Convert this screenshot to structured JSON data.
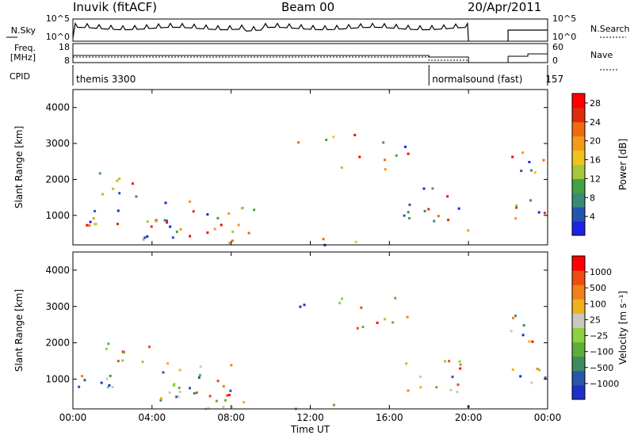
{
  "header": {
    "station": "Inuvik (fitACF)",
    "beam": "Beam 00",
    "date": "20/Apr/2011"
  },
  "noise_panel": {
    "left_label": "N.Sky",
    "right_label": "N.Search",
    "left_ticks": [
      "10^5",
      "10^0"
    ],
    "right_ticks": [
      "10^5",
      "10^0"
    ]
  },
  "freq_panel": {
    "left_label_1": "Freq.",
    "left_label_2": "[MHz]",
    "left_ticks": [
      "18",
      "8"
    ],
    "right_label": "Nave",
    "right_ticks": [
      "60",
      "0"
    ]
  },
  "cpid_panel": {
    "label": "CPID",
    "modes": [
      {
        "name": "themis 3300",
        "start_hour": 0.0
      },
      {
        "name": "normalsound (fast)",
        "cpid": "157",
        "start_hour": 18.0
      }
    ]
  },
  "chart_data": [
    {
      "type": "heatmap",
      "title": "",
      "xlabel": "",
      "ylabel": "Slant Range [km]",
      "x_ticks": [
        "00:00",
        "04:00",
        "08:00",
        "12:00",
        "16:00",
        "20:00",
        "00:00"
      ],
      "x_tick_hours": [
        0,
        4,
        8,
        12,
        16,
        20,
        24
      ],
      "xlim_hours": [
        0,
        24
      ],
      "y_ticks": [
        1000,
        2000,
        3000,
        4000
      ],
      "ylim": [
        180,
        4500
      ],
      "colorbar": {
        "label": "Power [dB]",
        "ticks": [
          4,
          8,
          12,
          16,
          20,
          24,
          28
        ],
        "range": [
          0,
          30
        ],
        "colors": [
          "#1e22e6",
          "#2255b0",
          "#3a8a7a",
          "#46a046",
          "#a6c838",
          "#f0c41a",
          "#f59a18",
          "#f06a10",
          "#e02c0c",
          "#ff0000"
        ]
      }
    },
    {
      "type": "heatmap",
      "title": "",
      "xlabel": "Time UT",
      "ylabel": "Slant Range [km]",
      "x_ticks": [
        "00:00",
        "04:00",
        "08:00",
        "12:00",
        "16:00",
        "20:00",
        "00:00"
      ],
      "x_tick_hours": [
        0,
        4,
        8,
        12,
        16,
        20,
        24
      ],
      "xlim_hours": [
        0,
        24
      ],
      "y_ticks": [
        1000,
        2000,
        3000,
        4000
      ],
      "ylim": [
        180,
        4500
      ],
      "colorbar": {
        "label": "Velocity [m s⁻¹]",
        "ticks": [
          "1000",
          "500",
          "100",
          "25",
          "−25",
          "−100",
          "−500",
          "−1000"
        ],
        "colors": [
          "#1f2fc9",
          "#2a55a8",
          "#3c8c60",
          "#5fae3a",
          "#8bd23e",
          "#c8c8be",
          "#f0b21c",
          "#f08018",
          "#f04a10",
          "#ff0000"
        ]
      }
    }
  ]
}
